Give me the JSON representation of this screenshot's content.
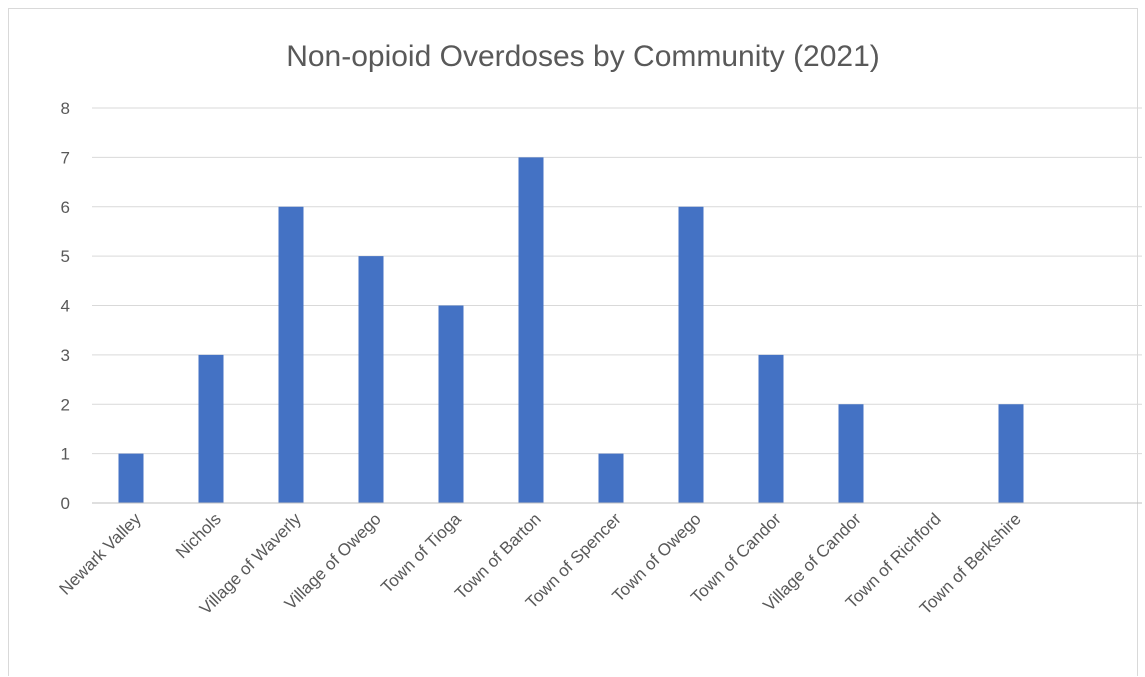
{
  "chart_data": {
    "type": "bar",
    "title": "Non-opioid Overdoses by Community (2021)",
    "xlabel": "",
    "ylabel": "",
    "categories": [
      "Newark Valley",
      "Nichols",
      "Village of Waverly",
      "Village of Owego",
      "Town of Tioga",
      "Town of Barton",
      "Town of Spencer",
      "Town of Owego",
      "Town of Candor",
      "Village of Candor",
      "Town of Richford",
      "Town of Berkshire"
    ],
    "values": [
      1,
      3,
      6,
      5,
      4,
      7,
      1,
      6,
      3,
      2,
      0,
      2
    ],
    "ylim": [
      0,
      8
    ],
    "yticks": [
      0,
      1,
      2,
      3,
      4,
      5,
      6,
      7,
      8
    ],
    "grid": true,
    "legend": "none",
    "colors": {
      "bar": "#4472C4",
      "grid": "#d9d9d9",
      "text": "#595959"
    }
  }
}
